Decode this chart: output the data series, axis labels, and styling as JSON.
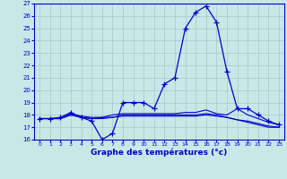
{
  "xlabel": "Graphe des températures (°c)",
  "x_ticks": [
    0,
    1,
    2,
    3,
    4,
    5,
    6,
    7,
    8,
    9,
    10,
    11,
    12,
    13,
    14,
    15,
    16,
    17,
    18,
    19,
    20,
    21,
    22,
    23
  ],
  "ylim": [
    16,
    27
  ],
  "yticks": [
    16,
    17,
    18,
    19,
    20,
    21,
    22,
    23,
    24,
    25,
    26,
    27
  ],
  "bg_color": "#c8e8e8",
  "line_color": "#0000cc",
  "grid_color": "#a8c8c8",
  "main_series": [
    17.7,
    17.7,
    17.8,
    18.2,
    17.8,
    17.5,
    16.0,
    16.5,
    19.0,
    19.0,
    19.0,
    18.5,
    20.5,
    21.0,
    25.0,
    26.3,
    26.8,
    25.5,
    21.5,
    18.5,
    18.5,
    18.0,
    17.5,
    17.2
  ],
  "flat_series": [
    [
      17.7,
      17.7,
      17.7,
      18.1,
      17.9,
      17.8,
      17.8,
      18.0,
      18.1,
      18.1,
      18.1,
      18.1,
      18.1,
      18.1,
      18.2,
      18.2,
      18.4,
      18.1,
      18.0,
      18.5,
      18.0,
      17.7,
      17.4,
      17.2
    ],
    [
      17.7,
      17.7,
      17.7,
      18.0,
      17.8,
      17.7,
      17.8,
      17.8,
      18.0,
      18.0,
      18.0,
      18.0,
      18.0,
      18.0,
      18.0,
      18.0,
      18.1,
      18.0,
      17.8,
      17.6,
      17.5,
      17.3,
      17.1,
      17.0
    ],
    [
      17.7,
      17.7,
      17.7,
      18.0,
      17.8,
      17.7,
      17.7,
      17.8,
      17.9,
      17.9,
      17.9,
      17.9,
      17.9,
      17.9,
      17.9,
      17.9,
      18.0,
      17.9,
      17.8,
      17.6,
      17.4,
      17.2,
      17.0,
      17.0
    ]
  ]
}
